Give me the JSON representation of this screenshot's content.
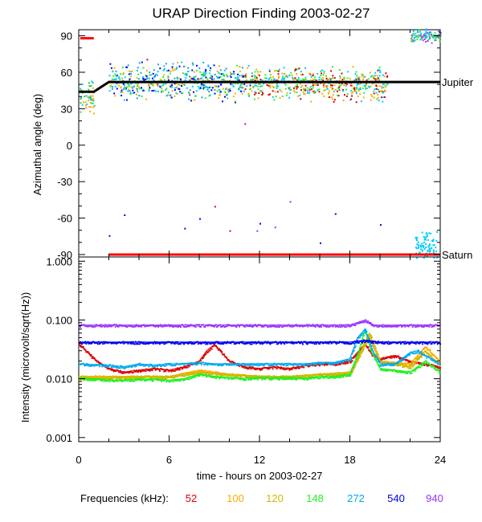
{
  "chart_data": [
    {
      "type": "scatter",
      "title": "URAP Direction Finding  2003-02-27",
      "ylabel": "Azimuthal angle (deg)",
      "xlim": [
        0,
        24
      ],
      "ylim": [
        -92,
        95
      ],
      "yticks": [
        90,
        60,
        30,
        0,
        -30,
        -60,
        -90
      ],
      "reference_lines": [
        {
          "name": "Jupiter",
          "color": "#000000",
          "points": [
            [
              0,
              44
            ],
            [
              1,
              44
            ],
            [
              2,
              52
            ],
            [
              24,
              52
            ]
          ]
        },
        {
          "name": "Saturn",
          "color": "#ff0000",
          "points": [
            [
              2,
              -90
            ],
            [
              24,
              -90
            ]
          ]
        }
      ],
      "marker": {
        "color": "#ff0000",
        "points": [
          [
            0.1,
            88
          ],
          [
            1.0,
            88
          ]
        ]
      },
      "clusters": [
        {
          "x0": 0,
          "x1": 1,
          "y0": 28,
          "y1": 52,
          "colors": [
            "#33cc33",
            "#ffaa00",
            "#00ccff"
          ]
        },
        {
          "x0": 2,
          "x1": 11,
          "y0": 40,
          "y1": 66,
          "colors": [
            "#00ccff",
            "#33ee33",
            "#ffaa00",
            "#0000ff",
            "#11aacc"
          ]
        },
        {
          "x0": 11,
          "x1": 20.5,
          "y0": 40,
          "y1": 62,
          "colors": [
            "#dd0000",
            "#ffaa00",
            "#00ccff",
            "#33ee33"
          ]
        },
        {
          "x0": 22.3,
          "x1": 23.8,
          "y0": -93,
          "y1": -72,
          "colors": [
            "#00ccff"
          ]
        },
        {
          "x0": 22,
          "x1": 24,
          "y0": 86,
          "y1": 95,
          "colors": [
            "#33ee33",
            "#00ccff",
            "#aa44ff"
          ]
        }
      ]
    },
    {
      "type": "line",
      "ylabel": "Intensity (microvolt/sqrt(Hz))",
      "xlabel": "time - hours on 2003-02-27",
      "xlim": [
        0,
        24
      ],
      "ylim": [
        0.001,
        1.0
      ],
      "yscale": "log",
      "yticks": [
        "1.000",
        "0.100",
        "0.010",
        "0.001"
      ],
      "xticks": [
        "0",
        "6",
        "12",
        "18",
        "24"
      ],
      "legend_label": "Frequencies (kHz):",
      "series": [
        {
          "name": "52",
          "color": "#dd0000",
          "points": [
            [
              0,
              0.04
            ],
            [
              1,
              0.022
            ],
            [
              2,
              0.015
            ],
            [
              3,
              0.013
            ],
            [
              4,
              0.014
            ],
            [
              5,
              0.015
            ],
            [
              6,
              0.014
            ],
            [
              7,
              0.016
            ],
            [
              8,
              0.02
            ],
            [
              8.5,
              0.03
            ],
            [
              9,
              0.038
            ],
            [
              10,
              0.02
            ],
            [
              11,
              0.016
            ],
            [
              12,
              0.015
            ],
            [
              13,
              0.016
            ],
            [
              14,
              0.015
            ],
            [
              15,
              0.017
            ],
            [
              16,
              0.018
            ],
            [
              17,
              0.018
            ],
            [
              18,
              0.02
            ],
            [
              18.6,
              0.03
            ],
            [
              19,
              0.04
            ],
            [
              19.5,
              0.025
            ],
            [
              20,
              0.022
            ],
            [
              21,
              0.025
            ],
            [
              22,
              0.02
            ],
            [
              23,
              0.018
            ],
            [
              24,
              0.016
            ]
          ]
        },
        {
          "name": "100",
          "color": "#ffaa00",
          "points": [
            [
              0,
              0.011
            ],
            [
              2,
              0.011
            ],
            [
              4,
              0.011
            ],
            [
              6,
              0.011
            ],
            [
              8,
              0.014
            ],
            [
              9,
              0.013
            ],
            [
              10,
              0.012
            ],
            [
              12,
              0.011
            ],
            [
              14,
              0.011
            ],
            [
              16,
              0.012
            ],
            [
              18,
              0.012
            ],
            [
              18.7,
              0.028
            ],
            [
              19.2,
              0.055
            ],
            [
              20,
              0.02
            ],
            [
              22,
              0.018
            ],
            [
              23,
              0.035
            ],
            [
              24,
              0.02
            ]
          ]
        },
        {
          "name": "120",
          "color": "#ccbb00",
          "points": [
            [
              0,
              0.01
            ],
            [
              2,
              0.0105
            ],
            [
              4,
              0.011
            ],
            [
              6,
              0.011
            ],
            [
              8,
              0.013
            ],
            [
              10,
              0.012
            ],
            [
              12,
              0.011
            ],
            [
              14,
              0.011
            ],
            [
              16,
              0.012
            ],
            [
              18,
              0.013
            ],
            [
              18.8,
              0.03
            ],
            [
              19.3,
              0.06
            ],
            [
              20,
              0.02
            ],
            [
              22,
              0.016
            ],
            [
              23,
              0.03
            ],
            [
              24,
              0.017
            ]
          ]
        },
        {
          "name": "148",
          "color": "#22ee22",
          "points": [
            [
              0,
              0.0105
            ],
            [
              1,
              0.01
            ],
            [
              2,
              0.0095
            ],
            [
              3,
              0.0095
            ],
            [
              4,
              0.01
            ],
            [
              5,
              0.0098
            ],
            [
              6,
              0.0095
            ],
            [
              7,
              0.01
            ],
            [
              8,
              0.012
            ],
            [
              9,
              0.011
            ],
            [
              10,
              0.0105
            ],
            [
              11,
              0.0102
            ],
            [
              12,
              0.0105
            ],
            [
              13,
              0.0103
            ],
            [
              14,
              0.0105
            ],
            [
              15,
              0.0102
            ],
            [
              16,
              0.011
            ],
            [
              17,
              0.011
            ],
            [
              18,
              0.012
            ],
            [
              18.6,
              0.03
            ],
            [
              19,
              0.07
            ],
            [
              19.4,
              0.03
            ],
            [
              20,
              0.015
            ],
            [
              21,
              0.014
            ],
            [
              22,
              0.013
            ],
            [
              23,
              0.02
            ],
            [
              24,
              0.013
            ]
          ]
        },
        {
          "name": "272",
          "color": "#00aaee",
          "points": [
            [
              0,
              0.018
            ],
            [
              2,
              0.017
            ],
            [
              3,
              0.016
            ],
            [
              4,
              0.018
            ],
            [
              5,
              0.017
            ],
            [
              6,
              0.018
            ],
            [
              7,
              0.018
            ],
            [
              8,
              0.019
            ],
            [
              9,
              0.018
            ],
            [
              10,
              0.018
            ],
            [
              11,
              0.018
            ],
            [
              12,
              0.018
            ],
            [
              13,
              0.018
            ],
            [
              14,
              0.018
            ],
            [
              15,
              0.018
            ],
            [
              16,
              0.019
            ],
            [
              17,
              0.019
            ],
            [
              18,
              0.022
            ],
            [
              18.5,
              0.05
            ],
            [
              19,
              0.07
            ],
            [
              19.5,
              0.03
            ],
            [
              20,
              0.018
            ],
            [
              21,
              0.018
            ],
            [
              22,
              0.028
            ],
            [
              22.5,
              0.03
            ],
            [
              23,
              0.025
            ],
            [
              24,
              0.018
            ]
          ]
        },
        {
          "name": "540",
          "color": "#0000ee",
          "points": [
            [
              0,
              0.042
            ],
            [
              2,
              0.042
            ],
            [
              4,
              0.042
            ],
            [
              6,
              0.042
            ],
            [
              8,
              0.042
            ],
            [
              10,
              0.042
            ],
            [
              12,
              0.042
            ],
            [
              14,
              0.042
            ],
            [
              16,
              0.042
            ],
            [
              18,
              0.042
            ],
            [
              19,
              0.045
            ],
            [
              20,
              0.042
            ],
            [
              22,
              0.042
            ],
            [
              24,
              0.042
            ]
          ]
        },
        {
          "name": "940",
          "color": "#9933ff",
          "points": [
            [
              0,
              0.082
            ],
            [
              2,
              0.082
            ],
            [
              4,
              0.082
            ],
            [
              6,
              0.082
            ],
            [
              8,
              0.082
            ],
            [
              10,
              0.082
            ],
            [
              12,
              0.082
            ],
            [
              14,
              0.082
            ],
            [
              16,
              0.082
            ],
            [
              18,
              0.082
            ],
            [
              19,
              0.1
            ],
            [
              19.6,
              0.082
            ],
            [
              20,
              0.082
            ],
            [
              22,
              0.082
            ],
            [
              24,
              0.082
            ]
          ]
        }
      ]
    }
  ]
}
